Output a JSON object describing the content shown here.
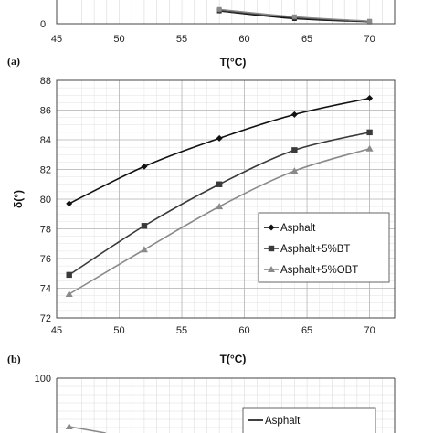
{
  "panel_labels": {
    "a": "(a)",
    "b": "(b)"
  },
  "chart_data": [
    {
      "panel": "top-partial",
      "type": "line",
      "xlabel": "T(°C)",
      "xlim": [
        45,
        72
      ],
      "x_ticks": [
        45,
        50,
        55,
        60,
        65,
        70
      ],
      "y_tick_shown": "0",
      "grid": true,
      "series": [
        {
          "x": [
            58,
            64,
            70
          ],
          "values": [
            4.0,
            1.6,
            0.6
          ],
          "color": "#111111"
        },
        {
          "x": [
            58,
            64,
            70
          ],
          "values": [
            4.2,
            1.9,
            0.7
          ],
          "color": "#444444"
        },
        {
          "x": [
            58,
            64,
            70
          ],
          "values": [
            4.5,
            2.2,
            0.8
          ],
          "color": "#8a8a8a"
        }
      ]
    },
    {
      "panel": "a",
      "type": "line",
      "xlabel": "T(°C)",
      "ylabel": "δ(°)",
      "xlim": [
        45,
        72
      ],
      "ylim": [
        72,
        88
      ],
      "x_ticks": [
        45,
        50,
        55,
        60,
        65,
        70
      ],
      "y_ticks": [
        72,
        74,
        76,
        78,
        80,
        82,
        84,
        86,
        88
      ],
      "grid": true,
      "legend_position": "bottom-right",
      "x": [
        46,
        52,
        58,
        64,
        70
      ],
      "series": [
        {
          "name": "Asphalt",
          "values": [
            79.7,
            82.2,
            84.1,
            85.7,
            86.8
          ],
          "color": "#111111",
          "marker": "diamond"
        },
        {
          "name": "Asphalt+5%BT",
          "values": [
            74.9,
            78.2,
            81.0,
            83.3,
            84.5
          ],
          "color": "#3a3a3a",
          "marker": "square"
        },
        {
          "name": "Asphalt+5%OBT",
          "values": [
            73.6,
            76.6,
            79.5,
            81.9,
            83.4
          ],
          "color": "#8a8a8a",
          "marker": "triangle"
        }
      ]
    },
    {
      "panel": "b",
      "type": "line",
      "xlim": [
        45,
        72
      ],
      "ylim": [
        0,
        100
      ],
      "y_tick_shown": "100",
      "grid": true,
      "legend_position": "bottom-right",
      "series": [
        {
          "name": "Asphalt",
          "x": [
            46
          ],
          "values": [
            88
          ],
          "color": "#8a8a8a",
          "marker": "triangle"
        }
      ]
    }
  ]
}
